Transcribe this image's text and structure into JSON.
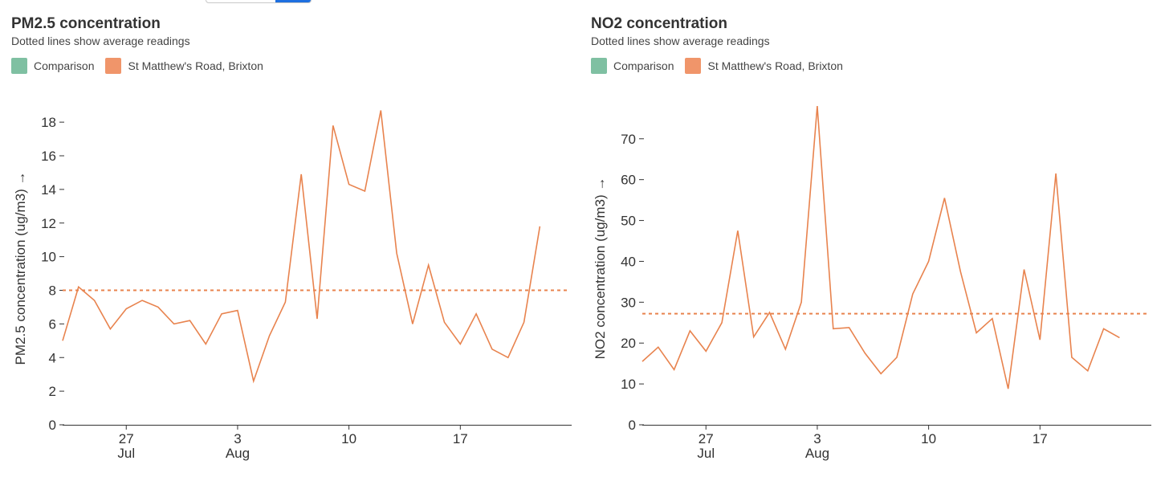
{
  "toggle": {
    "accent": "#1e6fe0"
  },
  "chart_data": [
    {
      "type": "line",
      "title": "PM2.5 concentration",
      "subtitle": "Dotted lines show average readings",
      "ylabel": "PM2.5 concentration (ug/m3) →",
      "xlabel": "",
      "ylim": [
        0,
        19.2
      ],
      "yticks": [
        0,
        2,
        4,
        6,
        8,
        10,
        12,
        14,
        16,
        18
      ],
      "xdomain": [
        "2020-07-23",
        "2020-08-24"
      ],
      "xticks": [
        {
          "date": "2020-07-27",
          "day": "27",
          "month": "Jul"
        },
        {
          "date": "2020-08-03",
          "day": "3",
          "month": "Aug"
        },
        {
          "date": "2020-08-10",
          "day": "10",
          "month": ""
        },
        {
          "date": "2020-08-17",
          "day": "17",
          "month": ""
        }
      ],
      "legend": [
        {
          "label": "Comparison",
          "color": "#7fc0a2"
        },
        {
          "label": "St Matthew's Road, Brixton",
          "color": "#f0956a"
        }
      ],
      "average": {
        "series": "St Matthew's Road, Brixton",
        "value": 8.0,
        "color": "#e8834e"
      },
      "series": [
        {
          "name": "St Matthew's Road, Brixton",
          "color": "#e8834e",
          "x": [
            "2020-07-23",
            "2020-07-24",
            "2020-07-25",
            "2020-07-26",
            "2020-07-27",
            "2020-07-28",
            "2020-07-29",
            "2020-07-30",
            "2020-07-31",
            "2020-08-01",
            "2020-08-02",
            "2020-08-03",
            "2020-08-04",
            "2020-08-05",
            "2020-08-06",
            "2020-08-07",
            "2020-08-08",
            "2020-08-09",
            "2020-08-10",
            "2020-08-11",
            "2020-08-12",
            "2020-08-13",
            "2020-08-14",
            "2020-08-15",
            "2020-08-16",
            "2020-08-17",
            "2020-08-18",
            "2020-08-19",
            "2020-08-20",
            "2020-08-21",
            "2020-08-22",
            "2020-08-23",
            "2020-08-24"
          ],
          "values": [
            5.0,
            8.2,
            7.4,
            5.7,
            6.9,
            7.4,
            7.0,
            6.0,
            6.2,
            4.8,
            6.6,
            6.8,
            2.6,
            5.3,
            7.3,
            14.9,
            6.3,
            17.8,
            14.3,
            13.9,
            18.7,
            10.2,
            6.0,
            9.5,
            6.1,
            4.8,
            6.6,
            4.5,
            4.0,
            6.1,
            11.8,
            null,
            null
          ]
        }
      ]
    },
    {
      "type": "line",
      "title": "NO2 concentration",
      "subtitle": "Dotted lines show average readings",
      "ylabel": "NO2 concentration (ug/m3) →",
      "xlabel": "",
      "ylim": [
        0,
        79
      ],
      "yticks": [
        0,
        10,
        20,
        30,
        40,
        50,
        60,
        70
      ],
      "xdomain": [
        "2020-07-23",
        "2020-08-24"
      ],
      "xticks": [
        {
          "date": "2020-07-27",
          "day": "27",
          "month": "Jul"
        },
        {
          "date": "2020-08-03",
          "day": "3",
          "month": "Aug"
        },
        {
          "date": "2020-08-10",
          "day": "10",
          "month": ""
        },
        {
          "date": "2020-08-17",
          "day": "17",
          "month": ""
        }
      ],
      "legend": [
        {
          "label": "Comparison",
          "color": "#7fc0a2"
        },
        {
          "label": "St Matthew's Road, Brixton",
          "color": "#f0956a"
        }
      ],
      "average": {
        "series": "St Matthew's Road, Brixton",
        "value": 27.2,
        "color": "#e8834e"
      },
      "series": [
        {
          "name": "St Matthew's Road, Brixton",
          "color": "#e8834e",
          "x": [
            "2020-07-23",
            "2020-07-24",
            "2020-07-25",
            "2020-07-26",
            "2020-07-27",
            "2020-07-28",
            "2020-07-29",
            "2020-07-30",
            "2020-07-31",
            "2020-08-01",
            "2020-08-02",
            "2020-08-03",
            "2020-08-04",
            "2020-08-05",
            "2020-08-06",
            "2020-08-07",
            "2020-08-08",
            "2020-08-09",
            "2020-08-10",
            "2020-08-11",
            "2020-08-12",
            "2020-08-13",
            "2020-08-14",
            "2020-08-15",
            "2020-08-16",
            "2020-08-17",
            "2020-08-18",
            "2020-08-19",
            "2020-08-20",
            "2020-08-21",
            "2020-08-22",
            "2020-08-23",
            "2020-08-24"
          ],
          "values": [
            15.5,
            19.0,
            13.5,
            23.0,
            18.0,
            25.0,
            47.5,
            21.5,
            27.5,
            18.5,
            30.0,
            78.0,
            23.5,
            23.8,
            17.5,
            12.5,
            16.5,
            32.0,
            40.0,
            55.5,
            37.5,
            22.5,
            26.0,
            8.8,
            38.0,
            20.8,
            61.5,
            16.5,
            13.2,
            23.5,
            21.3,
            null,
            null
          ]
        }
      ]
    }
  ]
}
